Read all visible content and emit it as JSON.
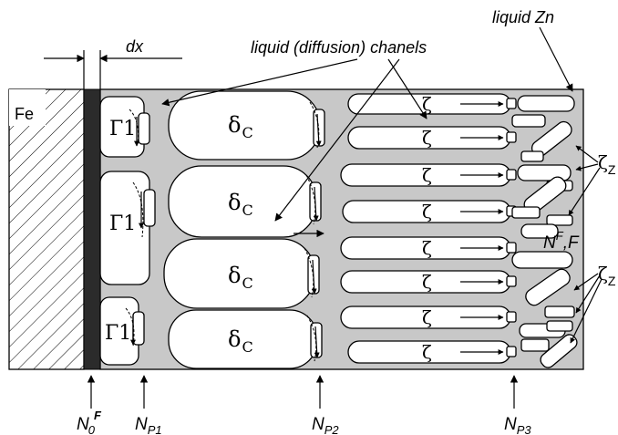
{
  "colors": {
    "matrix": "#c8c8c8",
    "interface": "#2b2b2b",
    "cell": "#ffffff",
    "stroke": "#000000"
  },
  "labels": {
    "fe": "Fe",
    "dx": "dx",
    "channels": "liquid (diffusion) chanels",
    "liquid_zn": "liquid Zn",
    "gamma": "Γ1",
    "delta": "δ",
    "delta_sub": "C",
    "zeta": "ζ",
    "zeta_z": "ζ",
    "zeta_z_sub": "Z",
    "nff_main": "N",
    "nff_sup": "F",
    "nff_tail": ",F",
    "n0": "N",
    "n0_sub": "0",
    "n0_sup": "F",
    "np1": "N",
    "np1_sub": "P1",
    "np2": "N",
    "np2_sub": "P2",
    "np3": "N",
    "np3_sub": "P3"
  }
}
